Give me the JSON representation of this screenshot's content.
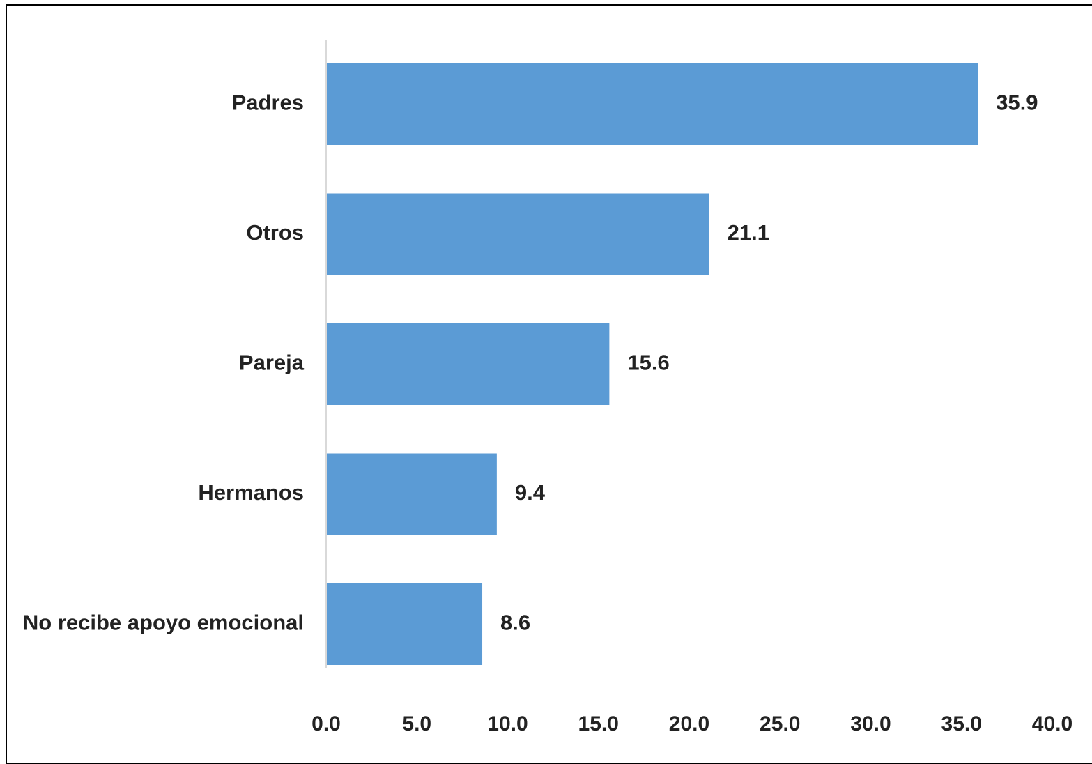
{
  "chart_data": {
    "type": "bar",
    "orientation": "horizontal",
    "categories": [
      "Padres",
      "Otros",
      "Pareja",
      "Hermanos",
      "No recibe apoyo emocional"
    ],
    "values": [
      35.9,
      21.1,
      15.6,
      9.4,
      8.6
    ],
    "value_labels": [
      "35.9",
      "21.1",
      "15.6",
      "9.4",
      "8.6"
    ],
    "xlim": [
      0,
      40
    ],
    "x_ticks": [
      0,
      5,
      10,
      15,
      20,
      25,
      30,
      35,
      40
    ],
    "x_tick_labels": [
      "0.0",
      "5.0",
      "10.0",
      "15.0",
      "20.0",
      "25.0",
      "30.0",
      "35.0",
      "40.0"
    ],
    "title": "",
    "xlabel": "",
    "ylabel": "",
    "grid": false,
    "legend": "none",
    "bar_color": "#5b9bd5",
    "axis_color": "#d9d9d9",
    "text_color": "#222222"
  }
}
